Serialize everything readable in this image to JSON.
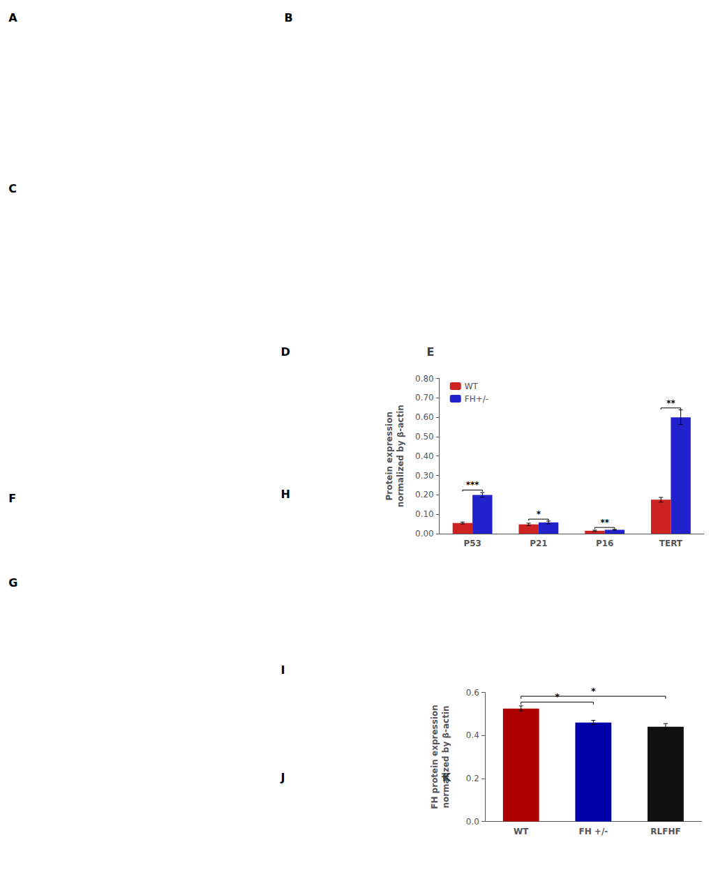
{
  "chart_data": [
    {
      "type": "bar",
      "title": "E",
      "categories": [
        "P53",
        "P21",
        "P16",
        "TERT"
      ],
      "series": [
        {
          "name": "WT",
          "color": "#CC2222",
          "values": [
            0.055,
            0.048,
            0.015,
            0.175
          ],
          "errors": [
            0.005,
            0.006,
            0.003,
            0.012
          ]
        },
        {
          "name": "FH+/-",
          "color": "#2222CC",
          "values": [
            0.2,
            0.058,
            0.02,
            0.6
          ],
          "errors": [
            0.012,
            0.007,
            0.002,
            0.038
          ]
        }
      ],
      "ylabel": "Protein expression\nnormalized by β-actin",
      "ylim": [
        0,
        0.8
      ],
      "yticks": [
        {
          "value": 0.0,
          "label": "0.00"
        },
        {
          "value": 0.1,
          "label": "0.10"
        },
        {
          "value": 0.2,
          "label": "0.20"
        },
        {
          "value": 0.3,
          "label": "0.30"
        },
        {
          "value": 0.4,
          "label": "0.40"
        },
        {
          "value": 0.5,
          "label": "0.50"
        },
        {
          "value": 0.6,
          "label": "0.60"
        },
        {
          "value": 0.7,
          "label": "0.70"
        },
        {
          "value": 0.8,
          "label": "0.80"
        }
      ],
      "grid": false,
      "legend": "upper left",
      "annotations": [
        {
          "text": "***",
          "category": "P53",
          "y": 0.225
        },
        {
          "text": "*",
          "category": "P21",
          "y": 0.075
        },
        {
          "text": "**",
          "category": "P16",
          "y": 0.032
        },
        {
          "text": "**",
          "category": "TERT",
          "y": 0.648
        },
        {
          "text": "A"
        },
        {
          "text": "B"
        },
        {
          "text": "C"
        },
        {
          "text": "D"
        },
        {
          "text": "F"
        },
        {
          "text": "G"
        },
        {
          "text": "H"
        },
        {
          "text": "I"
        },
        {
          "text": "J"
        }
      ]
    },
    {
      "type": "bar",
      "title": "K",
      "categories": [
        "WT",
        "FH +/-",
        "RLFHF"
      ],
      "values": [
        0.525,
        0.46,
        0.44
      ],
      "errors": [
        0.012,
        0.01,
        0.015
      ],
      "colors": [
        "#AA0000",
        "#0000AA",
        "#111111"
      ],
      "ylabel": "FH protein expression\nnormalized by β-actin",
      "ylim": [
        0.0,
        0.6
      ],
      "yticks": [
        {
          "value": 0.0,
          "label": "0.0"
        },
        {
          "value": 0.2,
          "label": "0.2"
        },
        {
          "value": 0.4,
          "label": "0.4"
        },
        {
          "value": 0.6,
          "label": "0.6"
        }
      ],
      "grid": false,
      "annotations": [
        {
          "text": "*",
          "from": "WT",
          "to": "FH +/-",
          "y": 0.555
        },
        {
          "text": "*",
          "from": "WT",
          "to": "RLFHF",
          "y": 0.582
        }
      ]
    }
  ]
}
